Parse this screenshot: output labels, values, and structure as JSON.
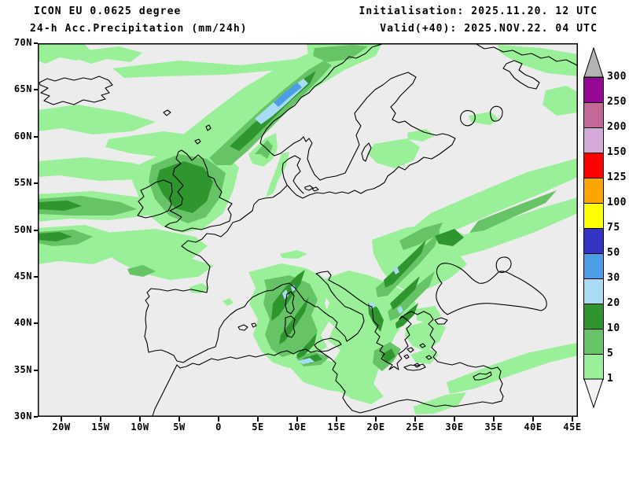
{
  "header": {
    "model_line": "ICON EU 0.0625 degree",
    "product_line": "24-h Acc.Precipitation (mm/24h)",
    "init_line": "Initialisation: 2025.11.20. 12 UTC",
    "valid_line": "Valid(+40): 2025.NOV.22. 04 UTC"
  },
  "chart_data": {
    "type": "map",
    "title": "24-h Acc.Precipitation (mm/24h)",
    "model": "ICON EU 0.0625 degree",
    "initialisation": "2025.11.20. 12 UTC",
    "valid": "2025.NOV.22. 04 UTC",
    "lead_time": "+40",
    "unit": "mm/24h",
    "lat_ticks": [
      "70N",
      "65N",
      "60N",
      "55N",
      "50N",
      "45N",
      "40N",
      "35N",
      "30N"
    ],
    "lon_ticks": [
      "20W",
      "15W",
      "10W",
      "5W",
      "0",
      "5E",
      "10E",
      "15E",
      "20E",
      "25E",
      "30E",
      "35E",
      "40E",
      "45E"
    ],
    "lat_range": [
      30,
      70
    ],
    "lon_range": [
      -23,
      45.7
    ],
    "map_background": "#ececec",
    "coastline_color": "#000000",
    "colorbar": {
      "levels_low_to_high": [
        1,
        5,
        10,
        20,
        30,
        50,
        75,
        100,
        125,
        150,
        200,
        250,
        300
      ],
      "colors_low_to_high": [
        "#99f098",
        "#66c466",
        "#2f962f",
        "#a8dcf4",
        "#4d9ce8",
        "#3434c4",
        "#ffff00",
        "#ffa500",
        "#ff0000",
        "#d4aad8",
        "#c46898",
        "#940894"
      ],
      "over_color": "#b4b4b4",
      "under_color": "#f2f2f2"
    },
    "precip_regions": [
      {
        "region": "Norwegian west coast",
        "band_mm": "20-50"
      },
      {
        "region": "Scotland / northern England",
        "band_mm": "10-20"
      },
      {
        "region": "Western Mediterranean (Corsica-Sardinia-Algeria)",
        "band_mm": "10-30"
      },
      {
        "region": "Adriatic / Balkans / southern Italy",
        "band_mm": "10-30"
      },
      {
        "region": "North Atlantic bands",
        "band_mm": "1-10"
      },
      {
        "region": "Bay of Biscay",
        "band_mm": "1-5"
      },
      {
        "region": "Belarus-Ukraine diagonal bands",
        "band_mm": "1-10"
      },
      {
        "region": "Eastern Mediterranean south of Turkey",
        "band_mm": "1-5"
      }
    ]
  }
}
